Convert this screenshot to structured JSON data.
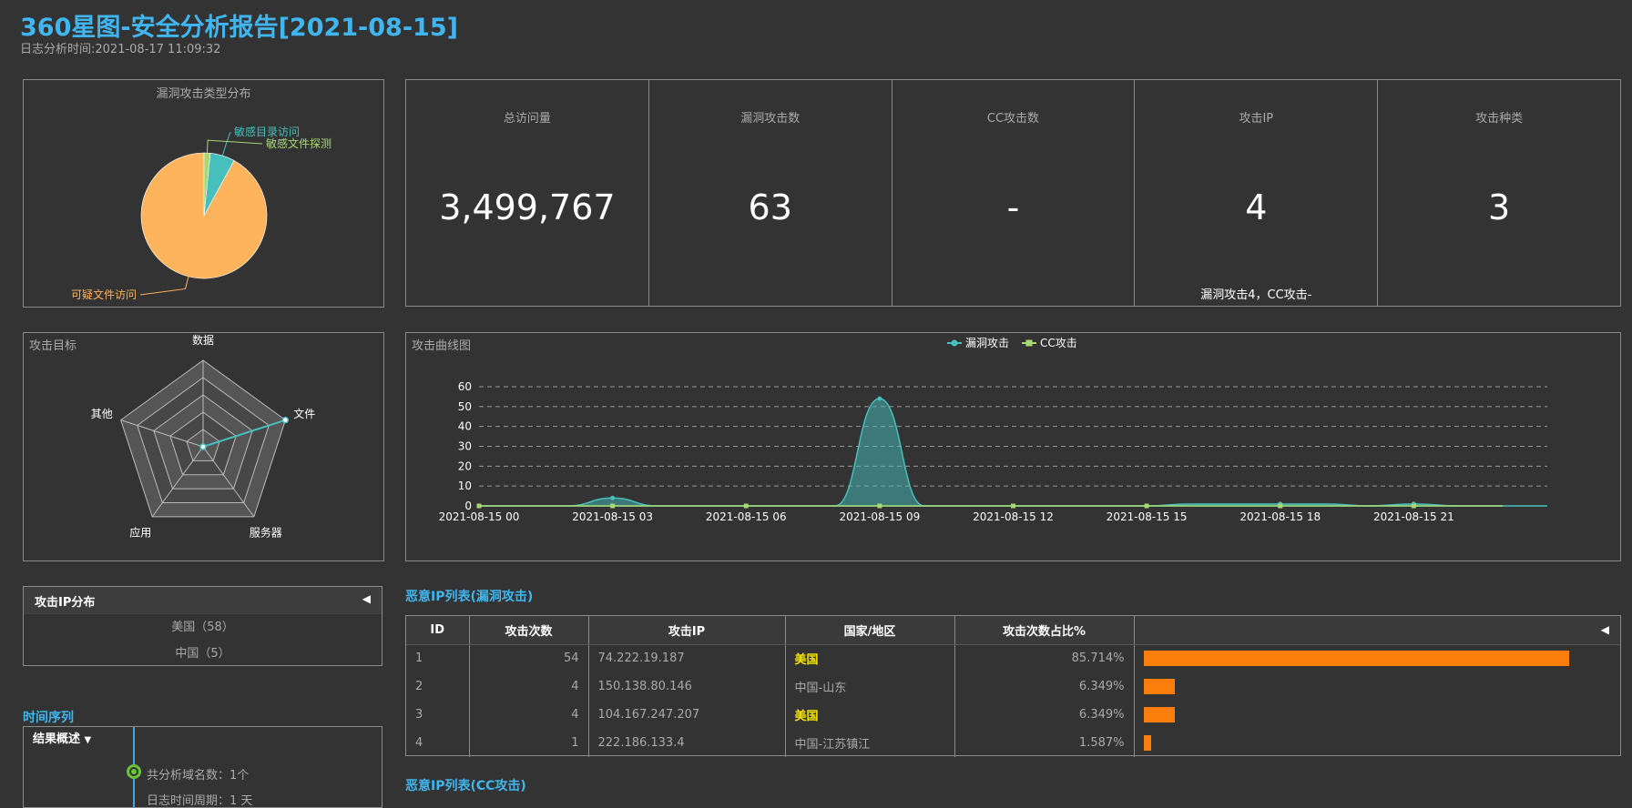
{
  "header": {
    "title": "360星图-安全分析报告[2021-08-15]",
    "subtitle": "日志分析时间:2021-08-17 11:09:32"
  },
  "pie": {
    "title": "漏洞攻击类型分布",
    "slices": [
      {
        "label": "可疑文件访问",
        "value": 58,
        "color": "#fdb45c"
      },
      {
        "label": "敏感目录访问",
        "value": 4,
        "color": "#46bfbd"
      },
      {
        "label": "敏感文件探测",
        "value": 1,
        "color": "#a8d870"
      }
    ]
  },
  "stats": [
    {
      "label": "总访问量",
      "value": "3,499,767",
      "note": ""
    },
    {
      "label": "漏洞攻击数",
      "value": "63",
      "note": ""
    },
    {
      "label": "CC攻击数",
      "value": "-",
      "note": ""
    },
    {
      "label": "攻击IP",
      "value": "4",
      "note": "漏洞攻击4，CC攻击-"
    },
    {
      "label": "攻击种类",
      "value": "3",
      "note": ""
    }
  ],
  "radar": {
    "title": "攻击目标",
    "axes": [
      "数据",
      "文件",
      "服务器",
      "应用",
      "其他"
    ],
    "values": [
      0,
      5,
      0,
      0,
      0
    ],
    "max": 5
  },
  "chart_data": {
    "type": "area",
    "title": "攻击曲线图",
    "legend": [
      "漏洞攻击",
      "CC攻击"
    ],
    "x_ticks": [
      "2021-08-15 00",
      "2021-08-15 03",
      "2021-08-15 06",
      "2021-08-15 09",
      "2021-08-15 12",
      "2021-08-15 15",
      "2021-08-15 18",
      "2021-08-15 21"
    ],
    "x": [
      0,
      1,
      2,
      3,
      4,
      5,
      6,
      7,
      8,
      9,
      10,
      11,
      12,
      13,
      14,
      15,
      16,
      17,
      18,
      19,
      20,
      21,
      22,
      23
    ],
    "ylim": [
      0,
      60
    ],
    "y_ticks": [
      0,
      10,
      20,
      30,
      40,
      50,
      60
    ],
    "grid": true,
    "legend_position": "top-center",
    "series": [
      {
        "name": "漏洞攻击",
        "color": "#46bfbd",
        "values": [
          0,
          0,
          0,
          4,
          0,
          0,
          0,
          0,
          0,
          54,
          0,
          0,
          0,
          0,
          0,
          0,
          1,
          1,
          1,
          1,
          0,
          1,
          0,
          0
        ]
      },
      {
        "name": "CC攻击",
        "color": "#a8d870",
        "values": [
          0,
          0,
          0,
          0,
          0,
          0,
          0,
          0,
          0,
          0,
          0,
          0,
          0,
          0,
          0,
          0,
          0,
          0,
          0,
          0,
          0,
          0,
          0,
          0
        ]
      }
    ]
  },
  "ip_dist": {
    "title": "攻击IP分布",
    "arrow": "◀",
    "rows": [
      "美国（58）",
      "中国（5）"
    ]
  },
  "timeline": {
    "section_title": "时间序列",
    "header": "结果概述",
    "caret": "▼",
    "items": [
      "共分析域名数：1个",
      "日志时间周期：1 天"
    ]
  },
  "ip_table": {
    "section_title": "恶意IP列表(漏洞攻击)",
    "columns": [
      "ID",
      "攻击次数",
      "攻击IP",
      "国家/地区",
      "攻击次数占比%"
    ],
    "arrow": "◀",
    "rows": [
      {
        "id": "1",
        "count": "54",
        "ip": "74.222.19.187",
        "region": "美国",
        "pct": "85.714%",
        "ratio": 0.85714,
        "highlight": true
      },
      {
        "id": "2",
        "count": "4",
        "ip": "150.138.80.146",
        "region": "中国-山东",
        "pct": "6.349%",
        "ratio": 0.06349,
        "highlight": false
      },
      {
        "id": "3",
        "count": "4",
        "ip": "104.167.247.207",
        "region": "美国",
        "pct": "6.349%",
        "ratio": 0.06349,
        "highlight": true
      },
      {
        "id": "4",
        "count": "1",
        "ip": "222.186.133.4",
        "region": "中国-江苏镇江",
        "pct": "1.587%",
        "ratio": 0.01587,
        "highlight": false
      }
    ]
  },
  "cc_table": {
    "section_title": "恶意IP列表(CC攻击)"
  }
}
